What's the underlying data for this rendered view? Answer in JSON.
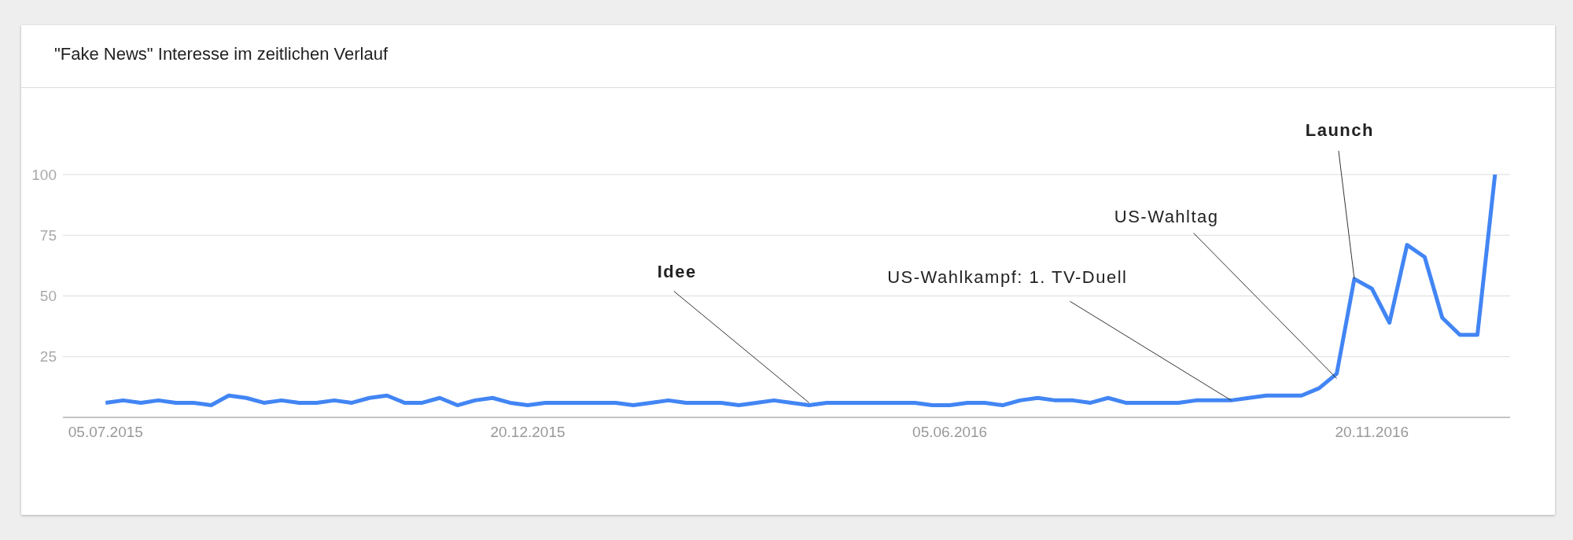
{
  "chart_data": {
    "type": "line",
    "title": "\"Fake News\" Interesse im zeitlichen Verlauf",
    "x": [
      "2015-07-05",
      "2015-07-12",
      "2015-07-19",
      "2015-07-26",
      "2015-08-02",
      "2015-08-09",
      "2015-08-16",
      "2015-08-23",
      "2015-08-30",
      "2015-09-06",
      "2015-09-13",
      "2015-09-20",
      "2015-09-27",
      "2015-10-04",
      "2015-10-11",
      "2015-10-18",
      "2015-10-25",
      "2015-11-01",
      "2015-11-08",
      "2015-11-15",
      "2015-11-22",
      "2015-11-29",
      "2015-12-06",
      "2015-12-13",
      "2015-12-20",
      "2015-12-27",
      "2016-01-03",
      "2016-01-10",
      "2016-01-17",
      "2016-01-24",
      "2016-01-31",
      "2016-02-07",
      "2016-02-14",
      "2016-02-21",
      "2016-02-28",
      "2016-03-06",
      "2016-03-13",
      "2016-03-20",
      "2016-03-27",
      "2016-04-03",
      "2016-04-10",
      "2016-04-17",
      "2016-04-24",
      "2016-05-01",
      "2016-05-08",
      "2016-05-15",
      "2016-05-22",
      "2016-05-29",
      "2016-06-05",
      "2016-06-12",
      "2016-06-19",
      "2016-06-26",
      "2016-07-03",
      "2016-07-10",
      "2016-07-17",
      "2016-07-24",
      "2016-07-31",
      "2016-08-07",
      "2016-08-14",
      "2016-08-21",
      "2016-08-28",
      "2016-09-04",
      "2016-09-11",
      "2016-09-18",
      "2016-09-25",
      "2016-10-02",
      "2016-10-09",
      "2016-10-16",
      "2016-10-23",
      "2016-10-30",
      "2016-11-06",
      "2016-11-13",
      "2016-11-20",
      "2016-11-27",
      "2016-12-04",
      "2016-12-11",
      "2016-12-18",
      "2016-12-25",
      "2017-01-01",
      "2017-01-08"
    ],
    "series": [
      {
        "color": "#4285f4",
        "values": [
          6,
          7,
          6,
          7,
          6,
          6,
          5,
          9,
          8,
          6,
          7,
          6,
          6,
          7,
          6,
          8,
          9,
          6,
          6,
          8,
          5,
          7,
          8,
          6,
          5,
          6,
          6,
          6,
          6,
          6,
          5,
          6,
          7,
          6,
          6,
          6,
          5,
          6,
          7,
          6,
          5,
          6,
          6,
          6,
          6,
          6,
          6,
          5,
          5,
          6,
          6,
          5,
          7,
          8,
          7,
          7,
          6,
          8,
          6,
          6,
          6,
          6,
          7,
          7,
          7,
          8,
          9,
          9,
          9,
          12,
          18,
          57,
          53,
          39,
          71,
          66,
          41,
          34,
          34,
          100
        ]
      }
    ],
    "xlim": [
      "2015-06-18",
      "2017-01-14"
    ],
    "xticks": [
      {
        "value": "2015-07-05",
        "label": "05.07.2015"
      },
      {
        "value": "2015-12-20",
        "label": "20.12.2015"
      },
      {
        "value": "2016-06-05",
        "label": "05.06.2016"
      },
      {
        "value": "2016-11-20",
        "label": "20.11.2016"
      }
    ],
    "ylim": [
      0,
      100
    ],
    "yticks": [
      25,
      50,
      75,
      100
    ],
    "grid": "y",
    "line_style": "solid",
    "annotations": [
      {
        "text": "Idee",
        "x": "2016-04-10",
        "y": 6
      },
      {
        "text": "US-Wahlkampf: 1. TV-Duell",
        "x": "2016-09-25",
        "y": 7
      },
      {
        "text": "US-Wahltag",
        "x": "2016-11-06",
        "y": 16
      },
      {
        "text": "Launch",
        "x": "2016-11-13",
        "y": 57
      }
    ]
  }
}
